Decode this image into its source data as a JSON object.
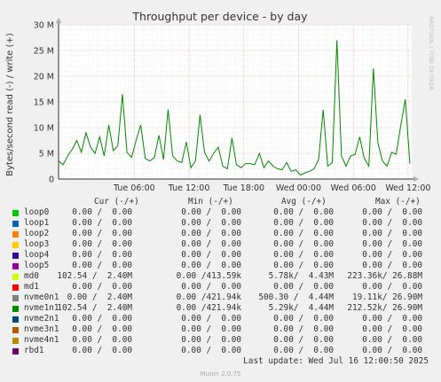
{
  "chart_data": {
    "type": "line",
    "title": "Throughput per device - by day",
    "ylabel": "Bytes/second read (-) / write (+)",
    "side_label": "RRDTOOL / TOBI OETIKER",
    "y_ticks": [
      "0",
      "5 M",
      "10 M",
      "15 M",
      "20 M",
      "25 M",
      "30 M"
    ],
    "y_tick_values": [
      0,
      5000000,
      10000000,
      15000000,
      20000000,
      25000000,
      30000000
    ],
    "ylim": [
      0,
      30000000
    ],
    "x_ticks": [
      "Tue 06:00",
      "Tue 12:00",
      "Tue 18:00",
      "Wed 00:00",
      "Wed 06:00",
      "Wed 12:00"
    ],
    "x_tick_hours": [
      6,
      12,
      18,
      24,
      30,
      36
    ],
    "xlim_hours": [
      -2.3,
      36.4
    ],
    "colors": {
      "series": "#008800",
      "grid_major": "#e0a0a0",
      "grid_minor": "#d8d8d8",
      "background": "#ffffff",
      "page": "#f0f0f0"
    },
    "series": [
      {
        "name": "md0",
        "x_hours": [
          -2.3,
          -1.8,
          -1.3,
          -0.8,
          -0.3,
          0.2,
          0.7,
          1.2,
          1.7,
          2.2,
          2.7,
          3.2,
          3.7,
          4.2,
          4.7,
          5.2,
          5.7,
          6.2,
          6.7,
          7.2,
          7.7,
          8.2,
          8.7,
          9.2,
          9.7,
          10.2,
          10.7,
          11.2,
          11.7,
          12.2,
          12.7,
          13.2,
          13.7,
          14.2,
          14.7,
          15.2,
          15.7,
          16.2,
          16.7,
          17.2,
          17.7,
          18.2,
          18.7,
          19.2,
          19.7,
          20.2,
          20.7,
          21.2,
          21.7,
          22.2,
          22.7,
          23.2,
          23.7,
          24.2,
          24.7,
          25.2,
          25.7,
          26.2,
          26.7,
          27.2,
          27.7,
          28.2,
          28.7,
          29.2,
          29.7,
          30.2,
          30.7,
          31.2,
          31.7,
          32.2,
          32.7,
          33.2,
          33.7,
          34.2,
          34.7,
          35.2,
          35.7,
          36.2
        ],
        "values": [
          3.5,
          2.8,
          4.5,
          5.8,
          7.5,
          5.2,
          9.0,
          6.2,
          5.0,
          8.2,
          4.5,
          10.5,
          5.5,
          6.5,
          16.5,
          5.2,
          4.2,
          7.5,
          10.5,
          4.0,
          3.5,
          4.2,
          8.5,
          3.8,
          13.5,
          4.5,
          3.5,
          3.2,
          7.2,
          2.2,
          3.5,
          12.5,
          5.2,
          3.5,
          5.0,
          6.2,
          2.5,
          2.0,
          8.0,
          2.8,
          2.2,
          3.0,
          3.0,
          2.8,
          5.0,
          2.2,
          3.5,
          2.5,
          2.0,
          1.8,
          3.2,
          1.5,
          1.8,
          0.8,
          1.2,
          1.5,
          2.0,
          3.8,
          13.5,
          2.5,
          3.2,
          27.0,
          4.5,
          2.5,
          4.5,
          4.8,
          8.2,
          4.0,
          2.5,
          21.5,
          7.0,
          3.5,
          2.5,
          5.2,
          4.8,
          10.5,
          15.5,
          3.0
        ],
        "legend_cur": "102.54 /  2.40M",
        "legend_min": "0.00 /413.59k",
        "legend_avg": "5.78k/  4.43M",
        "legend_max": "223.36k/ 26.88M"
      }
    ],
    "legend_headers": {
      "cur": "Cur (-/+)",
      "min": "Min (-/+)",
      "avg": "Avg (-/+)",
      "max": "Max (-/+)"
    },
    "legend": [
      {
        "name": "loop0",
        "color": "#00cc00",
        "cur": "0.00 /  0.00",
        "min": "0.00 /  0.00",
        "avg": "0.00 /  0.00",
        "max": "0.00 /  0.00"
      },
      {
        "name": "loop1",
        "color": "#0066b3",
        "cur": "0.00 /  0.00",
        "min": "0.00 /  0.00",
        "avg": "0.00 /  0.00",
        "max": "0.00 /  0.00"
      },
      {
        "name": "loop2",
        "color": "#ff8000",
        "cur": "0.00 /  0.00",
        "min": "0.00 /  0.00",
        "avg": "0.00 /  0.00",
        "max": "0.00 /  0.00"
      },
      {
        "name": "loop3",
        "color": "#ffcc00",
        "cur": "0.00 /  0.00",
        "min": "0.00 /  0.00",
        "avg": "0.00 /  0.00",
        "max": "0.00 /  0.00"
      },
      {
        "name": "loop4",
        "color": "#330099",
        "cur": "0.00 /  0.00",
        "min": "0.00 /  0.00",
        "avg": "0.00 /  0.00",
        "max": "0.00 /  0.00"
      },
      {
        "name": "loop5",
        "color": "#990099",
        "cur": "0.00 /  0.00",
        "min": "0.00 /  0.00",
        "avg": "0.00 /  0.00",
        "max": "0.00 /  0.00"
      },
      {
        "name": "md0",
        "color": "#ccff00",
        "cur": "102.54 /  2.40M",
        "min": "0.00 /413.59k",
        "avg": "5.78k/  4.43M",
        "max": "223.36k/ 26.88M"
      },
      {
        "name": "md1",
        "color": "#ff0000",
        "cur": "0.00 /  0.00",
        "min": "0.00 /  0.00",
        "avg": "0.00 /  0.00",
        "max": "0.00 /  0.00"
      },
      {
        "name": "nvme0n1",
        "color": "#808080",
        "cur": "0.00 /  2.40M",
        "min": "0.00 /421.94k",
        "avg": "500.30 /  4.44M",
        "max": "19.11k/ 26.90M"
      },
      {
        "name": "nvme1n1",
        "color": "#008f00",
        "cur": "102.54 /  2.40M",
        "min": "0.00 /421.94k",
        "avg": "5.29k/  4.44M",
        "max": "212.52k/ 26.90M"
      },
      {
        "name": "nvme2n1",
        "color": "#00487d",
        "cur": "0.00 /  0.00",
        "min": "0.00 /  0.00",
        "avg": "0.00 /  0.00",
        "max": "0.00 /  0.00"
      },
      {
        "name": "nvme3n1",
        "color": "#b35a00",
        "cur": "0.00 /  0.00",
        "min": "0.00 /  0.00",
        "avg": "0.00 /  0.00",
        "max": "0.00 /  0.00"
      },
      {
        "name": "nvme4n1",
        "color": "#b38f00",
        "cur": "0.00 /  0.00",
        "min": "0.00 /  0.00",
        "avg": "0.00 /  0.00",
        "max": "0.00 /  0.00"
      },
      {
        "name": "rbd1",
        "color": "#6b006b",
        "cur": "0.00 /  0.00",
        "min": "0.00 /  0.00",
        "avg": "0.00 /  0.00",
        "max": "0.00 /  0.00"
      }
    ],
    "last_update": "Last update: Wed Jul 16 12:00:50 2025",
    "footer": "Munin 2.0.75"
  }
}
